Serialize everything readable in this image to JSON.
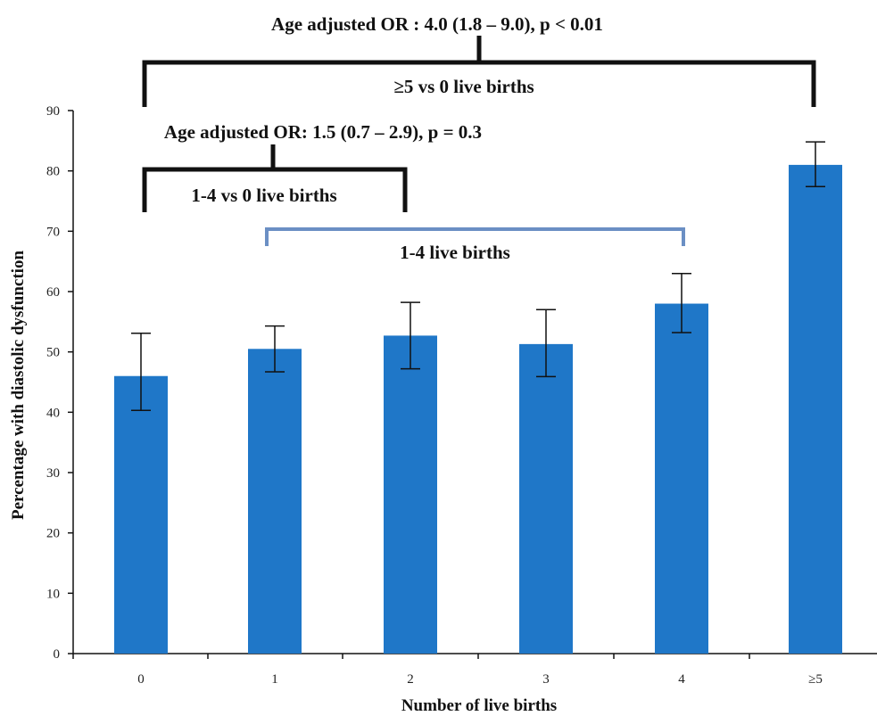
{
  "chart_data": {
    "type": "bar",
    "categories": [
      "0",
      "1",
      "2",
      "3",
      "4",
      "≥5"
    ],
    "values": [
      46,
      50.5,
      52.7,
      51.3,
      58,
      81
    ],
    "error_low": [
      40.3,
      46.7,
      47.2,
      45.9,
      53.2,
      77.4
    ],
    "error_high": [
      53.1,
      54.3,
      58.2,
      57,
      63,
      84.8
    ],
    "ylim": [
      0,
      90
    ],
    "yticks": [
      0,
      10,
      20,
      30,
      40,
      50,
      60,
      70,
      80,
      90
    ],
    "xlabel": "Number of live births",
    "ylabel": "Percentage with diastolic dysfunction",
    "bar_color": "#1f77c8",
    "grid": false,
    "annotations": {
      "top_or": "Age adjusted OR : 4.0 (1.8 – 9.0), p < 0.01",
      "top_bracket_label": "≥5  vs 0 live births",
      "mid_or": "Age adjusted OR: 1.5 (0.7 – 2.9), p = 0.3",
      "mid_bracket_label": "1-4 vs 0 live births",
      "blue_bracket_label": "1-4 live births",
      "blue_bracket_color": "#6b8fc4"
    }
  }
}
